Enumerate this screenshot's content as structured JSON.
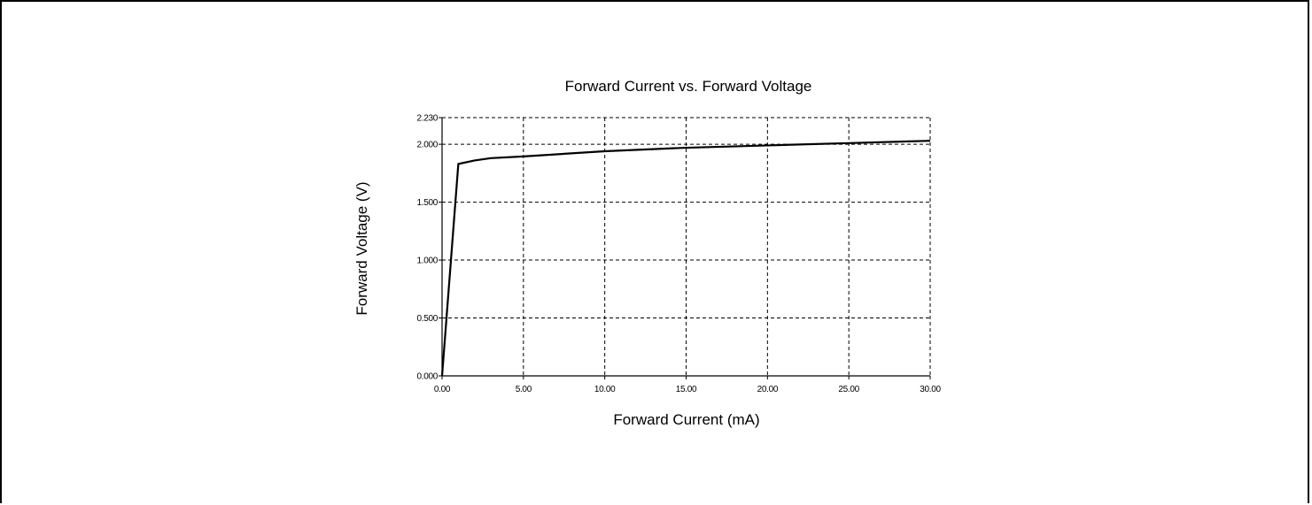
{
  "chart_data": {
    "type": "line",
    "title": "Forward Current vs. Forward Voltage",
    "xlabel": "Forward Current (mA)",
    "ylabel": "Forward Voltage (V)",
    "xlim": [
      0,
      30
    ],
    "ylim": [
      0,
      2.23
    ],
    "x_ticks": [
      0,
      5,
      10,
      15,
      20,
      25,
      30
    ],
    "x_tick_labels": [
      "0.00",
      "5.00",
      "10.00",
      "15.00",
      "20.00",
      "25.00",
      "30.00"
    ],
    "y_ticks": [
      0,
      0.5,
      1.0,
      1.5,
      2.0,
      2.23
    ],
    "y_tick_labels": [
      "0.000",
      "0.500",
      "1.000",
      "1.500",
      "2.000",
      "2.230"
    ],
    "grid": true,
    "line_color": "#000000",
    "series": [
      {
        "x": [
          0.0,
          1.0,
          2.0,
          3.0,
          5.0,
          10.0,
          15.0,
          20.0,
          25.0,
          30.0
        ],
        "y": [
          0.0,
          1.83,
          1.86,
          1.88,
          1.895,
          1.94,
          1.97,
          1.99,
          2.01,
          2.03
        ]
      }
    ]
  }
}
